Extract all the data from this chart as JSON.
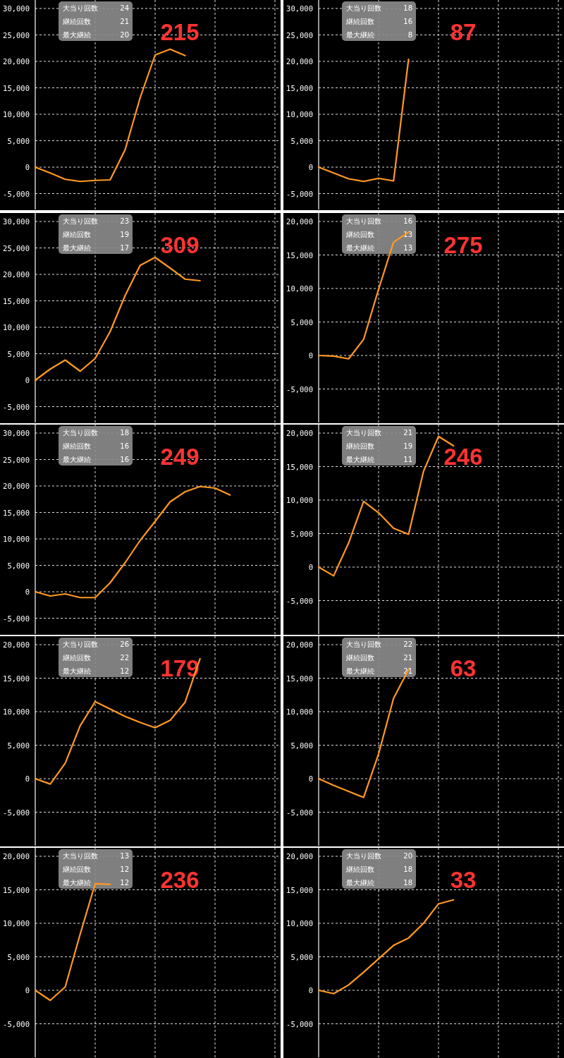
{
  "chart_data": [
    {
      "type": "line",
      "categories": [
        null,
        null,
        null,
        null,
        null,
        null,
        null,
        null,
        null,
        null,
        null,
        null,
        null,
        null,
        null,
        null,
        null
      ],
      "color": "#ff9922",
      "values": [
        0,
        -1100,
        -2300,
        -2700,
        -2500,
        -2400,
        3300,
        13100,
        21200,
        22300,
        21100,
        null,
        null,
        null,
        null,
        null,
        null
      ],
      "ylim": [
        -8000,
        30000
      ],
      "yticks": [
        {
          "value": -5000,
          "label": "-5,000"
        },
        {
          "value": 0,
          "label": "0"
        },
        {
          "value": 5000,
          "label": "5,000"
        },
        {
          "value": 10000,
          "label": "10,000"
        },
        {
          "value": 15000,
          "label": "15,000"
        },
        {
          "value": 20000,
          "label": "20,000"
        },
        {
          "value": 25000,
          "label": "25,000"
        },
        {
          "value": 30000,
          "label": "30,000"
        }
      ],
      "grid": true,
      "tick_labels": "y",
      "annotations": [
        "大当り回数",
        "24",
        "継続回数",
        "21",
        "最大継続",
        "20",
        "215"
      ]
    },
    {
      "type": "line",
      "categories": [
        null,
        null,
        null,
        null,
        null,
        null,
        null,
        null,
        null,
        null,
        null,
        null,
        null,
        null,
        null,
        null,
        null
      ],
      "color": "#ff9922",
      "values": [
        0,
        -1100,
        -2200,
        -2700,
        -2100,
        -2600,
        20400,
        null,
        null,
        null,
        null,
        null,
        null,
        null,
        null,
        null,
        null
      ],
      "ylim": [
        -8000,
        30000
      ],
      "yticks": [
        {
          "value": -5000,
          "label": "-5,000"
        },
        {
          "value": 0,
          "label": "0"
        },
        {
          "value": 5000,
          "label": "5,000"
        },
        {
          "value": 10000,
          "label": "10,000"
        },
        {
          "value": 15000,
          "label": "15,000"
        },
        {
          "value": 20000,
          "label": "20,000"
        },
        {
          "value": 25000,
          "label": "25,000"
        },
        {
          "value": 30000,
          "label": "30,000"
        }
      ],
      "grid": true,
      "tick_labels": "y",
      "annotations": [
        "大当り回数",
        "18",
        "継続回数",
        "16",
        "最大継続",
        "8",
        "87"
      ]
    },
    {
      "type": "line",
      "categories": [
        null,
        null,
        null,
        null,
        null,
        null,
        null,
        null,
        null,
        null,
        null,
        null,
        null,
        null,
        null,
        null,
        null
      ],
      "color": "#ff9922",
      "values": [
        0,
        2100,
        3800,
        1700,
        4100,
        9200,
        16000,
        21700,
        23200,
        21200,
        19100,
        18800,
        null,
        null,
        null,
        null,
        null
      ],
      "ylim": [
        -8000,
        30000
      ],
      "yticks": [
        {
          "value": -5000,
          "label": "-5,000"
        },
        {
          "value": 0,
          "label": "0"
        },
        {
          "value": 5000,
          "label": "5,000"
        },
        {
          "value": 10000,
          "label": "10,000"
        },
        {
          "value": 15000,
          "label": "15,000"
        },
        {
          "value": 20000,
          "label": "20,000"
        },
        {
          "value": 25000,
          "label": "25,000"
        },
        {
          "value": 30000,
          "label": "30,000"
        }
      ],
      "grid": true,
      "tick_labels": "y",
      "annotations": [
        "大当り回数",
        "23",
        "継続回数",
        "19",
        "最大継続",
        "17",
        "309"
      ]
    },
    {
      "type": "line",
      "categories": [
        null,
        null,
        null,
        null,
        null,
        null,
        null,
        null,
        null,
        null,
        null,
        null,
        null,
        null,
        null,
        null,
        null
      ],
      "color": "#ff9922",
      "values": [
        0,
        -100,
        -500,
        2400,
        9900,
        16900,
        18400,
        null,
        null,
        null,
        null,
        null,
        null,
        null,
        null,
        null,
        null
      ],
      "ylim": [
        -10000,
        20000
      ],
      "yticks": [
        {
          "value": -5000,
          "label": "-5,000"
        },
        {
          "value": 0,
          "label": "0"
        },
        {
          "value": 5000,
          "label": "5,000"
        },
        {
          "value": 10000,
          "label": "10,000"
        },
        {
          "value": 15000,
          "label": "15,000"
        },
        {
          "value": 20000,
          "label": "20,000"
        }
      ],
      "grid": true,
      "tick_labels": "y",
      "annotations": [
        "大当り回数",
        "16",
        "継続回数",
        "13",
        "最大継続",
        "13",
        "275"
      ]
    },
    {
      "type": "line",
      "categories": [
        null,
        null,
        null,
        null,
        null,
        null,
        null,
        null,
        null,
        null,
        null,
        null,
        null,
        null,
        null,
        null,
        null
      ],
      "color": "#ff9922",
      "values": [
        0,
        -800,
        -400,
        -1100,
        -1100,
        1700,
        5500,
        9700,
        13300,
        17000,
        18900,
        19900,
        19600,
        18300,
        null,
        null,
        null
      ],
      "ylim": [
        -8000,
        30000
      ],
      "yticks": [
        {
          "value": -5000,
          "label": "-5,000"
        },
        {
          "value": 0,
          "label": "0"
        },
        {
          "value": 5000,
          "label": "5,000"
        },
        {
          "value": 10000,
          "label": "10,000"
        },
        {
          "value": 15000,
          "label": "15,000"
        },
        {
          "value": 20000,
          "label": "20,000"
        },
        {
          "value": 25000,
          "label": "25,000"
        },
        {
          "value": 30000,
          "label": "30,000"
        }
      ],
      "grid": true,
      "tick_labels": "y",
      "annotations": [
        "大当り回数",
        "18",
        "継続回数",
        "16",
        "最大継続",
        "16",
        "249"
      ]
    },
    {
      "type": "line",
      "categories": [
        null,
        null,
        null,
        null,
        null,
        null,
        null,
        null,
        null,
        null,
        null,
        null,
        null,
        null,
        null,
        null,
        null
      ],
      "color": "#ff9922",
      "values": [
        0,
        -1300,
        3600,
        9800,
        8100,
        5800,
        4900,
        14300,
        19500,
        18100,
        null,
        null,
        null,
        null,
        null,
        null,
        null
      ],
      "ylim": [
        -10000,
        20000
      ],
      "yticks": [
        {
          "value": -5000,
          "label": "-5,000"
        },
        {
          "value": 0,
          "label": "0"
        },
        {
          "value": 5000,
          "label": "5,000"
        },
        {
          "value": 10000,
          "label": "10,000"
        },
        {
          "value": 15000,
          "label": "15,000"
        },
        {
          "value": 20000,
          "label": "20,000"
        }
      ],
      "grid": true,
      "tick_labels": "y",
      "annotations": [
        "大当り回数",
        "21",
        "継続回数",
        "19",
        "最大継続",
        "11",
        "246"
      ]
    },
    {
      "type": "line",
      "categories": [
        null,
        null,
        null,
        null,
        null,
        null,
        null,
        null,
        null,
        null,
        null,
        null,
        null,
        null,
        null,
        null,
        null
      ],
      "color": "#ff9922",
      "values": [
        0,
        -800,
        2300,
        7900,
        11500,
        10400,
        9300,
        8400,
        7600,
        8700,
        11400,
        17900,
        null,
        null,
        null,
        null,
        null
      ],
      "ylim": [
        -10000,
        20000
      ],
      "yticks": [
        {
          "value": -5000,
          "label": "-5,000"
        },
        {
          "value": 0,
          "label": "0"
        },
        {
          "value": 5000,
          "label": "5,000"
        },
        {
          "value": 10000,
          "label": "10,000"
        },
        {
          "value": 15000,
          "label": "15,000"
        },
        {
          "value": 20000,
          "label": "20,000"
        }
      ],
      "grid": true,
      "tick_labels": "y",
      "annotations": [
        "大当り回数",
        "26",
        "継続回数",
        "22",
        "最大継続",
        "12",
        "179"
      ]
    },
    {
      "type": "line",
      "categories": [
        null,
        null,
        null,
        null,
        null,
        null,
        null,
        null,
        null,
        null,
        null,
        null,
        null,
        null,
        null,
        null,
        null
      ],
      "color": "#ff9922",
      "values": [
        0,
        -1000,
        -1900,
        -2800,
        3700,
        12000,
        16300,
        null,
        null,
        null,
        null,
        null,
        null,
        null,
        null,
        null,
        null
      ],
      "ylim": [
        -10000,
        20000
      ],
      "yticks": [
        {
          "value": -5000,
          "label": "-5,000"
        },
        {
          "value": 0,
          "label": "0"
        },
        {
          "value": 5000,
          "label": "5,000"
        },
        {
          "value": 10000,
          "label": "10,000"
        },
        {
          "value": 15000,
          "label": "15,000"
        },
        {
          "value": 20000,
          "label": "20,000"
        }
      ],
      "grid": true,
      "tick_labels": "y",
      "annotations": [
        "大当り回数",
        "22",
        "継続回数",
        "21",
        "最大継続",
        "21",
        "63"
      ]
    },
    {
      "type": "line",
      "categories": [
        null,
        null,
        null,
        null,
        null,
        null,
        null,
        null,
        null,
        null,
        null,
        null,
        null,
        null,
        null,
        null,
        null
      ],
      "color": "#ff9922",
      "values": [
        0,
        -1500,
        500,
        8400,
        15900,
        15800,
        null,
        null,
        null,
        null,
        null,
        null,
        null,
        null,
        null,
        null,
        null
      ],
      "ylim": [
        -10000,
        20000
      ],
      "yticks": [
        {
          "value": -5000,
          "label": "-5,000"
        },
        {
          "value": 0,
          "label": "0"
        },
        {
          "value": 5000,
          "label": "5,000"
        },
        {
          "value": 10000,
          "label": "10,000"
        },
        {
          "value": 15000,
          "label": "15,000"
        },
        {
          "value": 20000,
          "label": "20,000"
        }
      ],
      "grid": true,
      "tick_labels": "y",
      "annotations": [
        "大当り回数",
        "13",
        "継続回数",
        "12",
        "最大継続",
        "12",
        "236"
      ]
    },
    {
      "type": "line",
      "categories": [
        null,
        null,
        null,
        null,
        null,
        null,
        null,
        null,
        null,
        null,
        null,
        null,
        null,
        null,
        null,
        null,
        null
      ],
      "color": "#ff9922",
      "values": [
        0,
        -500,
        800,
        2700,
        4700,
        6700,
        7800,
        10000,
        12900,
        13500,
        null,
        null,
        null,
        null,
        null,
        null,
        null
      ],
      "ylim": [
        -10000,
        20000
      ],
      "yticks": [
        {
          "value": -5000,
          "label": "-5,000"
        },
        {
          "value": 0,
          "label": "0"
        },
        {
          "value": 5000,
          "label": "5,000"
        },
        {
          "value": 10000,
          "label": "10,000"
        },
        {
          "value": 15000,
          "label": "15,000"
        },
        {
          "value": 20000,
          "label": "20,000"
        }
      ],
      "grid": true,
      "tick_labels": "y",
      "annotations": [
        "大当り回数",
        "20",
        "継続回数",
        "18",
        "最大継続",
        "18",
        "33"
      ]
    }
  ]
}
